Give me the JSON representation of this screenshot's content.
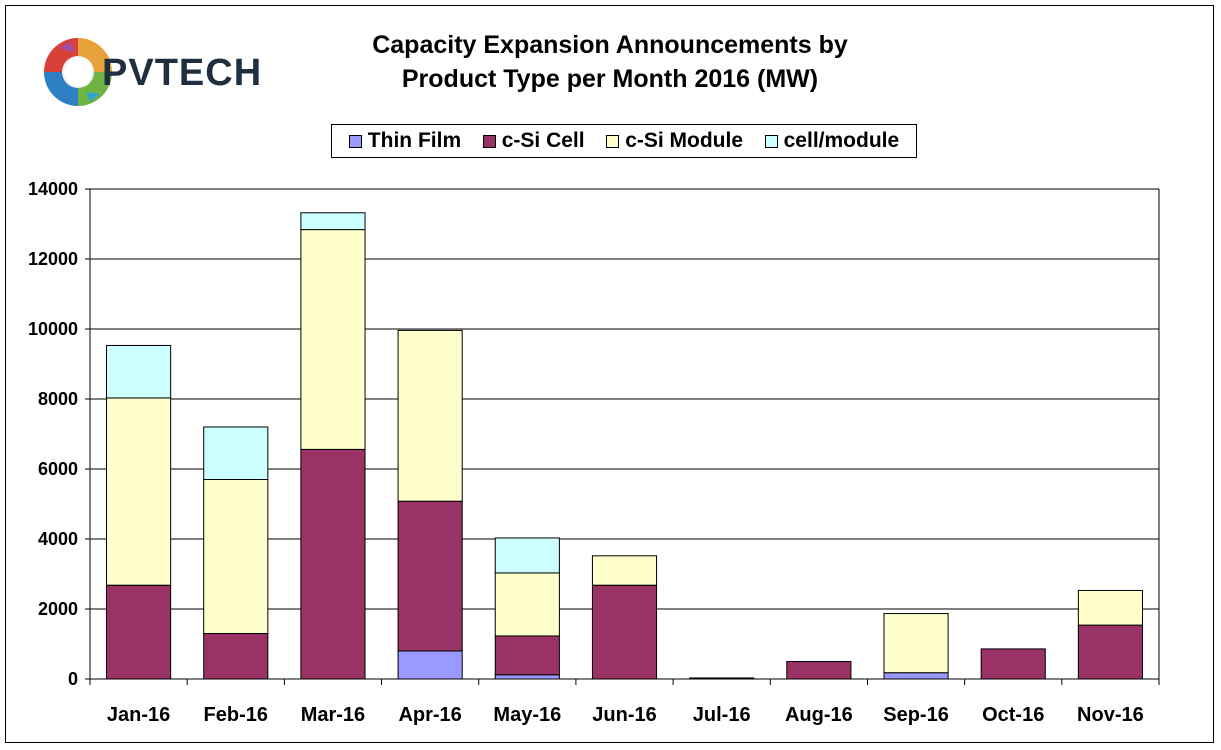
{
  "colors": {
    "thin_film": "#9999ff",
    "csi_cell": "#993366",
    "csi_module": "#ffffcc",
    "cell_module": "#ccffff",
    "background": "#ffffff",
    "grid": "#000000"
  },
  "logo": {
    "text": "PVTECH"
  },
  "chart_data": {
    "type": "bar",
    "stacked": true,
    "title": "Capacity Expansion Announcements by",
    "subtitle": "Product Type per Month 2016 (MW)",
    "xlabel": "",
    "ylabel": "",
    "ylim": [
      0,
      14000
    ],
    "yticks": [
      "0",
      "2000",
      "4000",
      "6000",
      "8000",
      "10000",
      "12000",
      "14000"
    ],
    "grid": true,
    "legend_position": "top",
    "categories": [
      "Jan-16",
      "Feb-16",
      "Mar-16",
      "Apr-16",
      "May-16",
      "Jun-16",
      "Jul-16",
      "Aug-16",
      "Sep-16",
      "Oct-16",
      "Nov-16"
    ],
    "series": [
      {
        "name": "Thin Film",
        "color_key": "thin_film",
        "values": [
          0,
          0,
          0,
          800,
          120,
          0,
          0,
          0,
          180,
          0,
          0
        ]
      },
      {
        "name": "c-Si Cell",
        "color_key": "csi_cell",
        "values": [
          2680,
          1300,
          6560,
          4280,
          1110,
          2680,
          30,
          500,
          0,
          860,
          1540
        ]
      },
      {
        "name": "c-Si Module",
        "color_key": "csi_module",
        "values": [
          5350,
          4400,
          6280,
          4880,
          1800,
          840,
          0,
          0,
          1690,
          0,
          990
        ]
      },
      {
        "name": "cell/module",
        "color_key": "cell_module",
        "values": [
          1500,
          1500,
          480,
          0,
          1000,
          0,
          0,
          0,
          0,
          0,
          0
        ]
      }
    ]
  }
}
